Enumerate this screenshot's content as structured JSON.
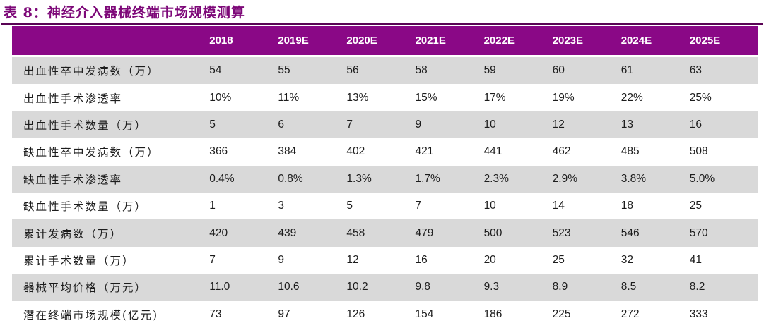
{
  "title": "表 8：神经介入器械终端市场规模测算",
  "colors": {
    "title_text": "#7d0878",
    "title_rule": "#5a0455",
    "header_bg": "#8a0886",
    "header_text": "#ffffff",
    "stripe_bg": "#d9d9d9",
    "body_text": "#1c1c1c"
  },
  "table": {
    "label_column_header": "",
    "columns": [
      "2018",
      "2019E",
      "2020E",
      "2021E",
      "2022E",
      "2023E",
      "2024E",
      "2025E"
    ],
    "rows": [
      {
        "label": "出血性卒中发病数（万）",
        "values": [
          "54",
          "55",
          "56",
          "58",
          "59",
          "60",
          "61",
          "63"
        ]
      },
      {
        "label": "出血性手术渗透率",
        "values": [
          "10%",
          "11%",
          "13%",
          "15%",
          "17%",
          "19%",
          "22%",
          "25%"
        ]
      },
      {
        "label": "出血性手术数量（万）",
        "values": [
          "5",
          "6",
          "7",
          "9",
          "10",
          "12",
          "13",
          "16"
        ]
      },
      {
        "label": "缺血性卒中发病数（万）",
        "values": [
          "366",
          "384",
          "402",
          "421",
          "441",
          "462",
          "485",
          "508"
        ]
      },
      {
        "label": "缺血性手术渗透率",
        "values": [
          "0.4%",
          "0.8%",
          "1.3%",
          "1.7%",
          "2.3%",
          "2.9%",
          "3.8%",
          "5.0%"
        ]
      },
      {
        "label": "缺血性手术数量（万）",
        "values": [
          "1",
          "3",
          "5",
          "7",
          "10",
          "14",
          "18",
          "25"
        ]
      },
      {
        "label": "累计发病数（万）",
        "values": [
          "420",
          "439",
          "458",
          "479",
          "500",
          "523",
          "546",
          "570"
        ]
      },
      {
        "label": "累计手术数量（万）",
        "values": [
          "7",
          "9",
          "12",
          "16",
          "20",
          "25",
          "32",
          "41"
        ]
      },
      {
        "label": "器械平均价格（万元）",
        "values": [
          "11.0",
          "10.6",
          "10.2",
          "9.8",
          "9.3",
          "8.9",
          "8.5",
          "8.2"
        ]
      },
      {
        "label": "潜在终端市场规模(亿元)",
        "values": [
          "73",
          "97",
          "126",
          "154",
          "186",
          "225",
          "272",
          "333"
        ]
      }
    ]
  }
}
